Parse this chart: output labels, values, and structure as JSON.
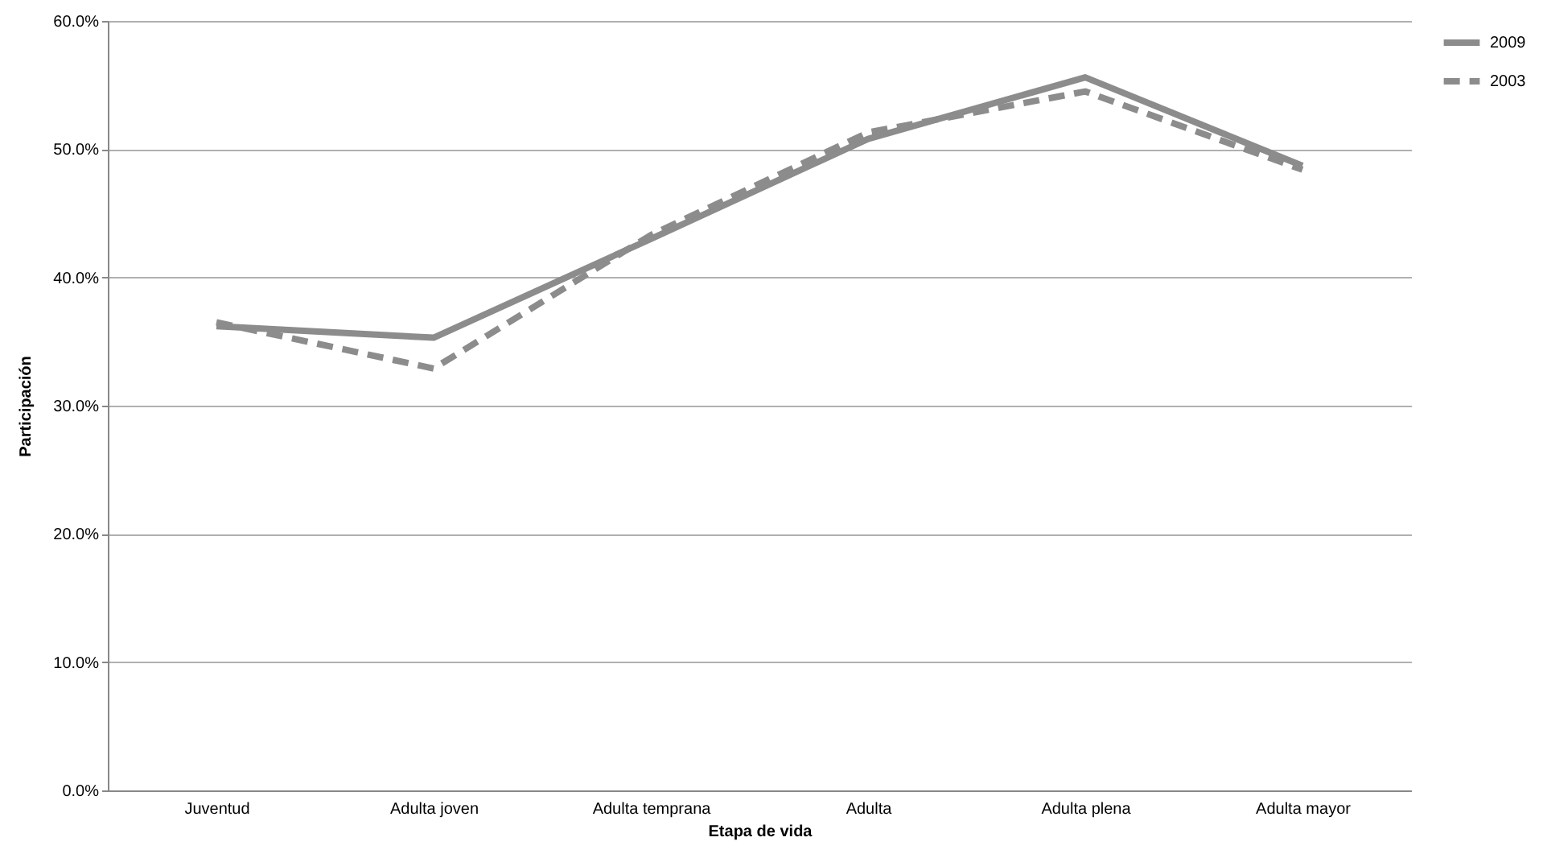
{
  "chart_data": {
    "type": "line",
    "xlabel": "Etapa de vida",
    "ylabel": "Participación",
    "categories": [
      "Juventud",
      "Adulta joven",
      "Adulta temprana",
      "Adulta",
      "Adulta plena",
      "Adulta mayor"
    ],
    "series": [
      {
        "name": "2009",
        "color": "#8c8c8c",
        "line_style": "solid",
        "values": [
          36.2,
          35.3,
          43.0,
          50.8,
          55.6,
          48.7
        ]
      },
      {
        "name": "2003",
        "color": "#8c8c8c",
        "line_style": "dashed",
        "values": [
          36.5,
          32.9,
          43.3,
          51.3,
          54.5,
          48.4
        ]
      }
    ],
    "ylim": [
      0,
      60
    ],
    "yticks": [
      {
        "value": 0,
        "label": "0.0%"
      },
      {
        "value": 10,
        "label": "10.0%"
      },
      {
        "value": 20,
        "label": "20.0%"
      },
      {
        "value": 30,
        "label": "30.0%"
      },
      {
        "value": 40,
        "label": "40.0%"
      },
      {
        "value": 50,
        "label": "50.0%"
      },
      {
        "value": 60,
        "label": "60.0%"
      }
    ],
    "grid": "y",
    "legend": "right",
    "marker": "none"
  }
}
